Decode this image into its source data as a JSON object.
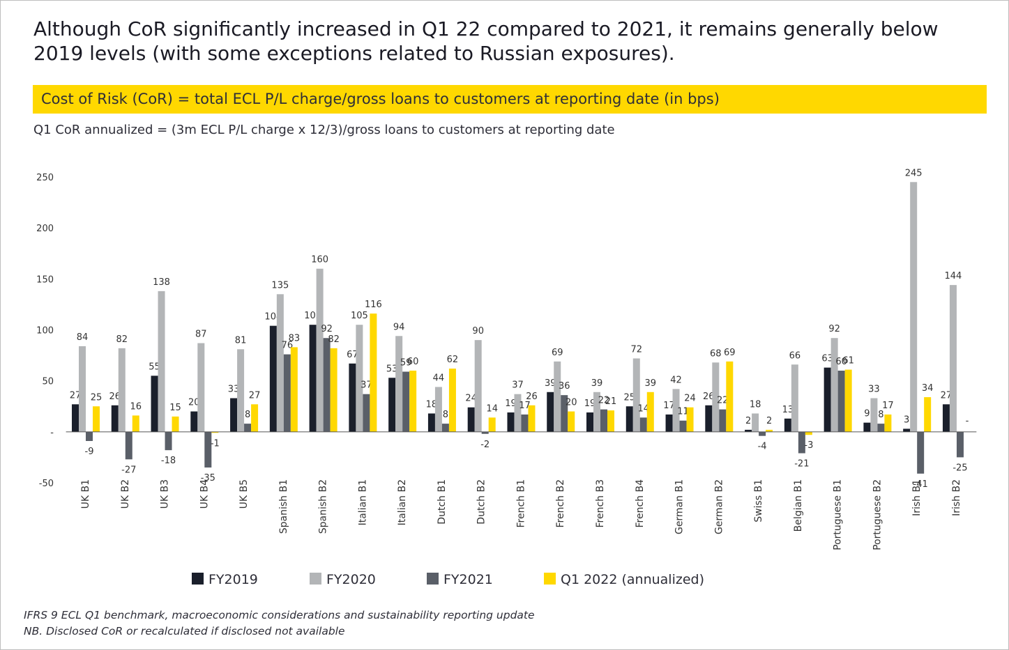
{
  "chart_data": {
    "type": "bar",
    "title": "Although CoR significantly increased in Q1 22 compared to 2021, it remains generally below 2019 levels (with some exceptions related to Russian exposures).",
    "subtitle": "Cost of Risk (CoR) = total ECL P/L charge/gross loans to customers at reporting date (in bps)",
    "formula_note": "Q1 CoR annualized = (3m ECL P/L charge x 12/3)/gross loans to customers at reporting date",
    "footnotes": [
      "IFRS 9 ECL Q1 benchmark, macroeconomic considerations and sustainability reporting update",
      "NB. Disclosed CoR or recalculated if disclosed not available"
    ],
    "categories": [
      "UK B1",
      "UK B2",
      "UK B3",
      "UK B4",
      "UK B5",
      "Spanish B1",
      "Spanish B2",
      "Italian B1",
      "Italian B2",
      "Dutch B1",
      "Dutch B2",
      "French B1",
      "French B2",
      "French B3",
      "French B4",
      "German B1",
      "German B2",
      "Swiss B1",
      "Belgian B1",
      "Portuguese B1",
      "Portuguese B2",
      "Irish B1",
      "Irish B2"
    ],
    "series": [
      {
        "name": "FY2019",
        "color": "#1a1f2b",
        "values": [
          27,
          26,
          55,
          20,
          33,
          104,
          105,
          67,
          53,
          18,
          24,
          19,
          39,
          19,
          25,
          17,
          26,
          2,
          13,
          63,
          9,
          3,
          27
        ]
      },
      {
        "name": "FY2020",
        "color": "#b3b5b7",
        "values": [
          84,
          82,
          138,
          87,
          81,
          135,
          160,
          105,
          94,
          44,
          90,
          37,
          69,
          39,
          72,
          42,
          68,
          18,
          66,
          92,
          33,
          245,
          144
        ]
      },
      {
        "name": "FY2021",
        "color": "#5a5f68",
        "values": [
          -9,
          -27,
          -18,
          -35,
          8,
          76,
          92,
          37,
          59,
          8,
          -2,
          17,
          36,
          22,
          14,
          11,
          22,
          -4,
          -21,
          60,
          8,
          -41,
          -25
        ]
      },
      {
        "name": "Q1 2022 (annualized)",
        "color": "#ffd800",
        "values": [
          25,
          16,
          15,
          -1,
          27,
          83,
          82,
          116,
          60,
          62,
          14,
          26,
          20,
          21,
          39,
          24,
          69,
          2,
          -3,
          61,
          17,
          34,
          null
        ],
        "value_labels": [
          "25",
          "16",
          "15",
          "-1",
          "27",
          "83",
          "82",
          "116",
          "60",
          "62",
          "14",
          "26",
          "20",
          "21",
          "39",
          "24",
          "69",
          "2",
          "-3",
          "61",
          "17",
          "34",
          "-"
        ]
      }
    ],
    "ylim": [
      -50,
      250
    ],
    "yticks": [
      -50,
      {
        "value": 0,
        "label": "-"
      },
      50,
      100,
      150,
      200,
      250
    ],
    "grid": false,
    "legend": "bottom"
  }
}
